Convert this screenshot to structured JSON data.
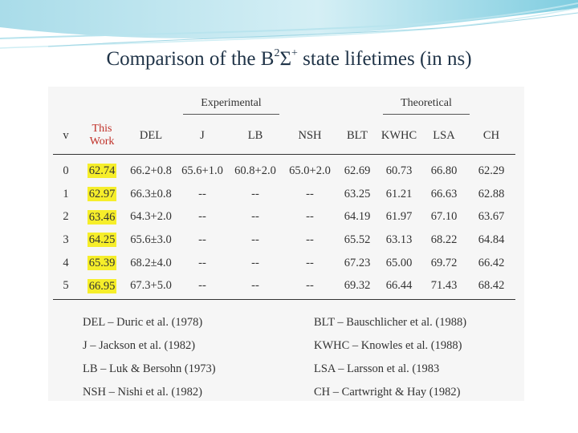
{
  "slide": {
    "title_main": "Comparison of the B",
    "title_sup1": "2",
    "title_sigma": "Σ",
    "title_sup2": "+",
    "title_rest": " state lifetimes (in ns)"
  },
  "table": {
    "group_experimental": "Experimental",
    "group_theoretical": "Theoretical",
    "headers": {
      "v": "v",
      "this_work_line1": "This",
      "this_work_line2": "Work",
      "del": "DEL",
      "j": "J",
      "lb": "LB",
      "nsh": "NSH",
      "blt": "BLT",
      "kwhc": "KWHC",
      "lsa": "LSA",
      "ch": "CH"
    },
    "rows": [
      [
        "0",
        "62.74",
        "66.2+0.8",
        "65.6+1.0",
        "60.8+2.0",
        "65.0+2.0",
        "62.69",
        "60.73",
        "66.80",
        "62.29"
      ],
      [
        "1",
        "62.97",
        "66.3±0.8",
        "--",
        "--",
        "--",
        "63.25",
        "61.21",
        "66.63",
        "62.88"
      ],
      [
        "2",
        "63.46",
        "64.3+2.0",
        "--",
        "--",
        "--",
        "64.19",
        "61.97",
        "67.10",
        "63.67"
      ],
      [
        "3",
        "64.25",
        "65.6±3.0",
        "--",
        "--",
        "--",
        "65.52",
        "63.13",
        "68.22",
        "64.84"
      ],
      [
        "4",
        "65.39",
        "68.2±4.0",
        "--",
        "--",
        "--",
        "67.23",
        "65.00",
        "69.72",
        "66.42"
      ],
      [
        "5",
        "66.95",
        "67.3+5.0",
        "--",
        "--",
        "--",
        "69.32",
        "66.44",
        "71.43",
        "68.42"
      ]
    ],
    "highlight_color": "#f6ee2a",
    "this_work_color": "#c03028"
  },
  "legend": {
    "left": [
      "DEL – Duric et al. (1978)",
      "J – Jackson et al. (1982)",
      "LB – Luk & Bersohn (1973)",
      "NSH – Nishi et al. (1982)"
    ],
    "right": [
      "BLT – Bauschlicher et al. (1988)",
      "KWHC – Knowles et al. (1988)",
      "LSA – Larsson et al. (1983",
      "CH – Cartwright & Hay (1982)"
    ]
  }
}
